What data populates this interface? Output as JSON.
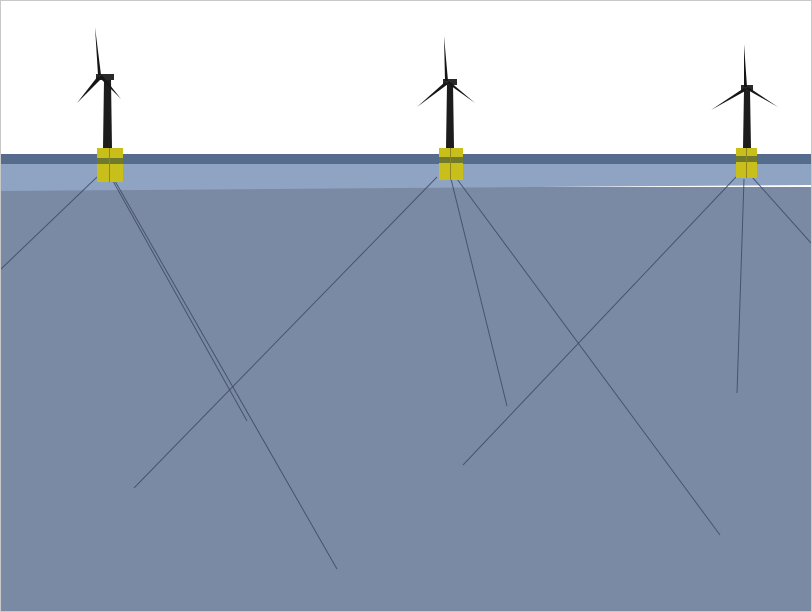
{
  "scene": {
    "sky_color": "#ffffff",
    "surface_band_color": "#566c8c",
    "shallow_water_color": "#8fa3c3",
    "deep_water_color": "#7b8aa4",
    "mooring_line_color": "#3d4a60",
    "tower_color": "#1c1c1c",
    "platform_color": "#c9bf1a",
    "platform_stripe_color": "#6f7a2c",
    "turbine_count": 3,
    "mooring_lines_per_turbine": 3
  }
}
